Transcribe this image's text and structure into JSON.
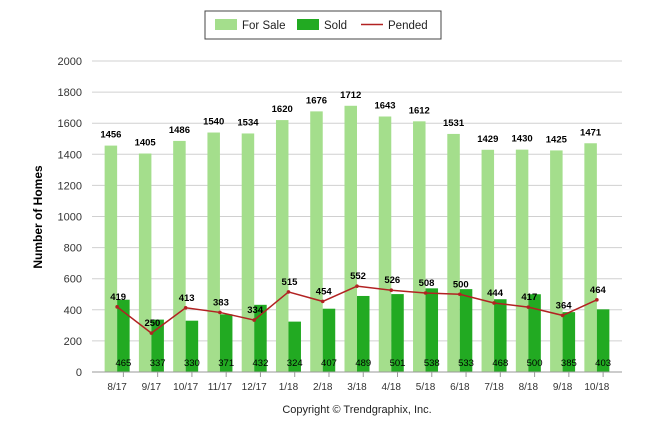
{
  "chart_data": {
    "type": "bar",
    "categories": [
      "8/17",
      "9/17",
      "10/17",
      "11/17",
      "12/17",
      "1/18",
      "2/18",
      "3/18",
      "4/18",
      "5/18",
      "6/18",
      "7/18",
      "8/18",
      "9/18",
      "10/18"
    ],
    "series": [
      {
        "name": "For Sale",
        "kind": "bar",
        "color": "#a4de8c",
        "values": [
          1456,
          1405,
          1486,
          1540,
          1534,
          1620,
          1676,
          1712,
          1643,
          1612,
          1531,
          1429,
          1430,
          1425,
          1471
        ]
      },
      {
        "name": "Sold",
        "kind": "bar",
        "color": "#22aa22",
        "values": [
          465,
          337,
          330,
          371,
          432,
          324,
          407,
          489,
          501,
          538,
          533,
          468,
          500,
          385,
          403
        ]
      },
      {
        "name": "Pended",
        "kind": "line",
        "color": "#b22222",
        "values": [
          419,
          250,
          413,
          383,
          334,
          515,
          454,
          552,
          526,
          508,
          500,
          444,
          417,
          364,
          464
        ]
      }
    ],
    "ylabel": "Number of Homes",
    "xlabel": "",
    "ylim": [
      0,
      2000
    ],
    "yticks": [
      0,
      200,
      400,
      600,
      800,
      1000,
      1200,
      1400,
      1600,
      1800,
      2000
    ],
    "grid": true,
    "legend": "top-center"
  },
  "copyright": "Copyright © Trendgraphix, Inc."
}
